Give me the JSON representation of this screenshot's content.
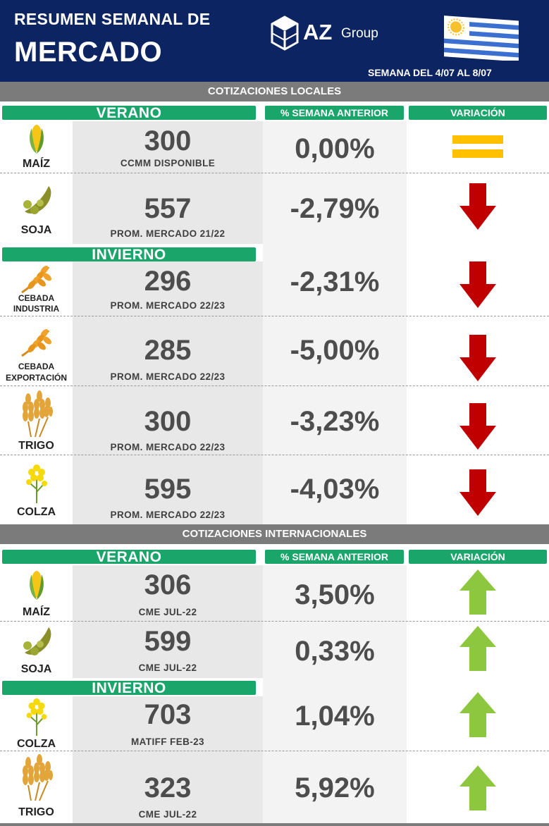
{
  "header": {
    "title_line1": "RESUMEN SEMANAL DE",
    "title_line2": "MERCADO",
    "logo_main": "AZ",
    "logo_sub": "Group",
    "week": "SEMANA DEL  4/07 AL 8/07",
    "flag_icon": "uruguay-flag-icon",
    "bg_color": "#0c2461"
  },
  "colors": {
    "header_pill": "#1aa56b",
    "section_bar": "#7b7b7b",
    "down": "#c00000",
    "up": "#8dc63f",
    "equal": "#ffc000"
  },
  "local": {
    "section_title": "COTIZACIONES LOCALES",
    "verano_label": "VERANO",
    "invierno_label": "INVIERNO",
    "pct_header": "% SEMANA ANTERIOR",
    "var_header": "VARIACIÓN",
    "rows": [
      {
        "crop": "MAÍZ",
        "icon": "corn-icon",
        "value": "300",
        "sub": "CCMM DISPONIBLE",
        "pct": "0,00%",
        "trend": "equal"
      },
      {
        "crop": "SOJA",
        "icon": "soy-icon",
        "value": "557",
        "sub": "PROM. MERCADO 21/22",
        "pct": "-2,79%",
        "trend": "down"
      },
      {
        "crop_line1": "CEBADA",
        "crop_line2": "INDUSTRIA",
        "icon": "barley-icon",
        "value": "296",
        "sub": "PROM. MERCADO 22/23",
        "pct": "-2,31%",
        "trend": "down"
      },
      {
        "crop_line1": "CEBADA",
        "crop_line2": "EXPORTACIÓN",
        "icon": "barley-icon",
        "value": "285",
        "sub": "PROM. MERCADO 22/23",
        "pct": "-5,00%",
        "trend": "down"
      },
      {
        "crop": "TRIGO",
        "icon": "wheat-icon",
        "value": "300",
        "sub": "PROM. MERCADO 22/23",
        "pct": "-3,23%",
        "trend": "down"
      },
      {
        "crop": "COLZA",
        "icon": "rapeseed-icon",
        "value": "595",
        "sub": "PROM. MERCADO 22/23",
        "pct": "-4,03%",
        "trend": "down"
      }
    ]
  },
  "international": {
    "section_title": "COTIZACIONES INTERNACIONALES",
    "verano_label": "VERANO",
    "invierno_label": "INVIERNO",
    "pct_header": "% SEMANA ANTERIOR",
    "var_header": "VARIACIÓN",
    "rows": [
      {
        "crop": "MAÍZ",
        "icon": "corn-icon",
        "value": "306",
        "sub": "CME JUL-22",
        "pct": "3,50%",
        "trend": "up"
      },
      {
        "crop": "SOJA",
        "icon": "soy-icon",
        "value": "599",
        "sub": "CME JUL-22",
        "pct": "0,33%",
        "trend": "up"
      },
      {
        "crop": "COLZA",
        "icon": "rapeseed-icon",
        "value": "703",
        "sub": "MATIFF FEB-23",
        "pct": "1,04%",
        "trend": "up"
      },
      {
        "crop": "TRIGO",
        "icon": "wheat-icon",
        "value": "323",
        "sub": "CME JUL-22",
        "pct": "5,92%",
        "trend": "up"
      }
    ]
  }
}
